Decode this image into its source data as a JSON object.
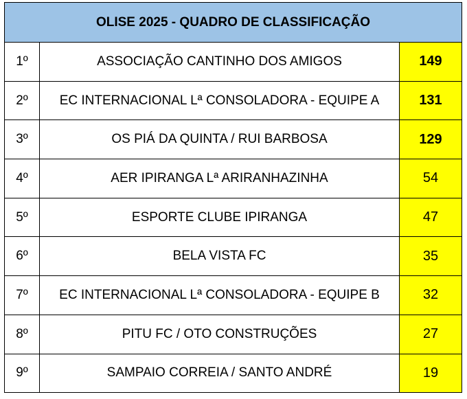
{
  "title": "OLISE 2025 - QUADRO DE CLASSIFICAÇÃO",
  "highlight_color": "#ffff00",
  "header_color": "#9dc3e6",
  "rows": [
    {
      "rank": "1º",
      "team": "ASSOCIAÇÃO CANTINHO DOS AMIGOS",
      "points": "149"
    },
    {
      "rank": "2º",
      "team": "EC INTERNACIONAL Lª CONSOLADORA - EQUIPE A",
      "points": "131"
    },
    {
      "rank": "3º",
      "team": "OS PIÁ DA QUINTA / RUI BARBOSA",
      "points": "129"
    },
    {
      "rank": "4º",
      "team": "AER IPIRANGA Lª ARIRANHAZINHA",
      "points": "54"
    },
    {
      "rank": "5º",
      "team": "ESPORTE CLUBE IPIRANGA",
      "points": "47"
    },
    {
      "rank": "6º",
      "team": "BELA VISTA FC",
      "points": "35"
    },
    {
      "rank": "7º",
      "team": "EC INTERNACIONAL Lª CONSOLADORA - EQUIPE B",
      "points": "32"
    },
    {
      "rank": "8º",
      "team": "PITU FC / OTO CONSTRUÇÕES",
      "points": "27"
    },
    {
      "rank": "9º",
      "team": "SAMPAIO CORREIA / SANTO ANDRÉ",
      "points": "19"
    }
  ]
}
